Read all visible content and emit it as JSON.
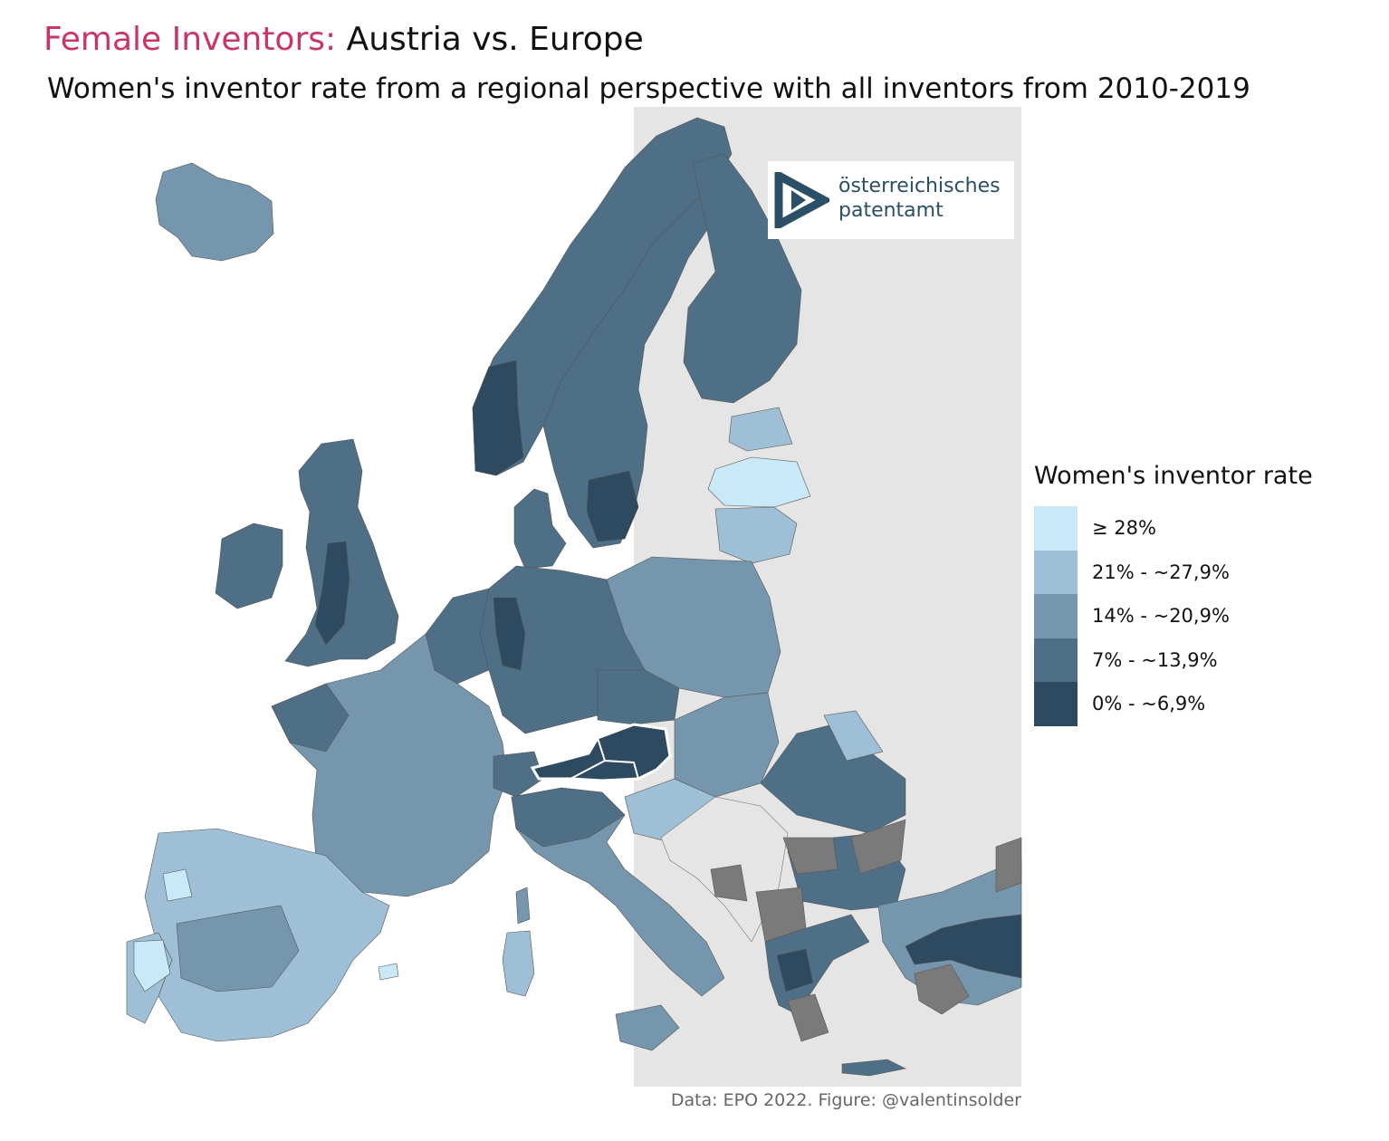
{
  "header": {
    "title_highlight": "Female Inventors:",
    "title_rest": "Austria vs. Europe",
    "subtitle": "Women's inventor rate from a regional perspective with all inventors from 2010-2019"
  },
  "logo": {
    "line1": "österreichisches",
    "line2": "patentamt",
    "color": "#2a4f66"
  },
  "legend": {
    "title": "Women's inventor rate",
    "items": [
      {
        "label": "≥ 28%",
        "color": "#c9e9f8"
      },
      {
        "label": "21% - ~27,9%",
        "color": "#9ebfd5"
      },
      {
        "label": "14% - ~20,9%",
        "color": "#7596ad"
      },
      {
        "label": "7% - ~13,9%",
        "color": "#4f6f86"
      },
      {
        "label": "0% - ~6,9%",
        "color": "#2e4a61"
      }
    ]
  },
  "map_colors": {
    "no_data": "#7a7a7a",
    "non_eu": "#e5e5e5",
    "austria_outline": "#ffffff"
  },
  "caption": "Data: EPO 2022. Figure: @valentinsolder"
}
